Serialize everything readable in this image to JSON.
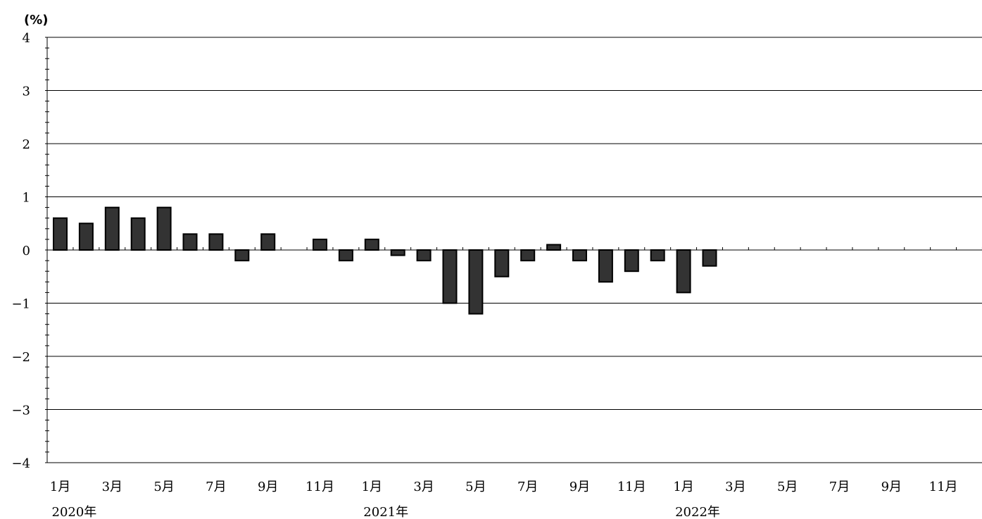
{
  "chart_data": {
    "type": "bar",
    "title": "",
    "unit_label": "(%)",
    "ylim": [
      -4,
      4
    ],
    "y_ticks": [
      4,
      3,
      2,
      1,
      0,
      -1,
      -2,
      -3,
      -4
    ],
    "y_tick_labels": [
      "4",
      "3",
      "2",
      "1",
      "0",
      "−1",
      "−2",
      "−3",
      "−4"
    ],
    "grid": true,
    "bar_color": "#333333",
    "categories": [
      "2020-01",
      "2020-02",
      "2020-03",
      "2020-04",
      "2020-05",
      "2020-06",
      "2020-07",
      "2020-08",
      "2020-09",
      "2020-10",
      "2020-11",
      "2020-12",
      "2021-01",
      "2021-02",
      "2021-03",
      "2021-04",
      "2021-05",
      "2021-06",
      "2021-07",
      "2021-08",
      "2021-09",
      "2021-10",
      "2021-11",
      "2021-12",
      "2022-01",
      "2022-02",
      "2022-03",
      "2022-04",
      "2022-05",
      "2022-06",
      "2022-07",
      "2022-08",
      "2022-09",
      "2022-10",
      "2022-11",
      "2022-12"
    ],
    "values": [
      0.6,
      0.5,
      0.8,
      0.6,
      0.8,
      0.3,
      0.3,
      -0.2,
      0.3,
      null,
      0.2,
      -0.2,
      0.2,
      -0.1,
      -0.2,
      -1.0,
      -1.2,
      -0.5,
      -0.2,
      0.1,
      -0.2,
      -0.6,
      -0.4,
      -0.2,
      -0.8,
      -0.3,
      null,
      null,
      null,
      null,
      null,
      null,
      null,
      null,
      null,
      null
    ],
    "x_tick_labels": [
      {
        "index": 0,
        "label": "1月"
      },
      {
        "index": 2,
        "label": "3月"
      },
      {
        "index": 4,
        "label": "5月"
      },
      {
        "index": 6,
        "label": "7月"
      },
      {
        "index": 8,
        "label": "9月"
      },
      {
        "index": 10,
        "label": "11月"
      },
      {
        "index": 12,
        "label": "1月"
      },
      {
        "index": 14,
        "label": "3月"
      },
      {
        "index": 16,
        "label": "5月"
      },
      {
        "index": 18,
        "label": "7月"
      },
      {
        "index": 20,
        "label": "9月"
      },
      {
        "index": 22,
        "label": "11月"
      },
      {
        "index": 24,
        "label": "1月"
      },
      {
        "index": 26,
        "label": "3月"
      },
      {
        "index": 28,
        "label": "5月"
      },
      {
        "index": 30,
        "label": "7月"
      },
      {
        "index": 32,
        "label": "9月"
      },
      {
        "index": 34,
        "label": "11月"
      }
    ],
    "year_labels": [
      {
        "index": 0,
        "label": "2020年"
      },
      {
        "index": 12,
        "label": "2021年"
      },
      {
        "index": 24,
        "label": "2022年"
      }
    ]
  }
}
